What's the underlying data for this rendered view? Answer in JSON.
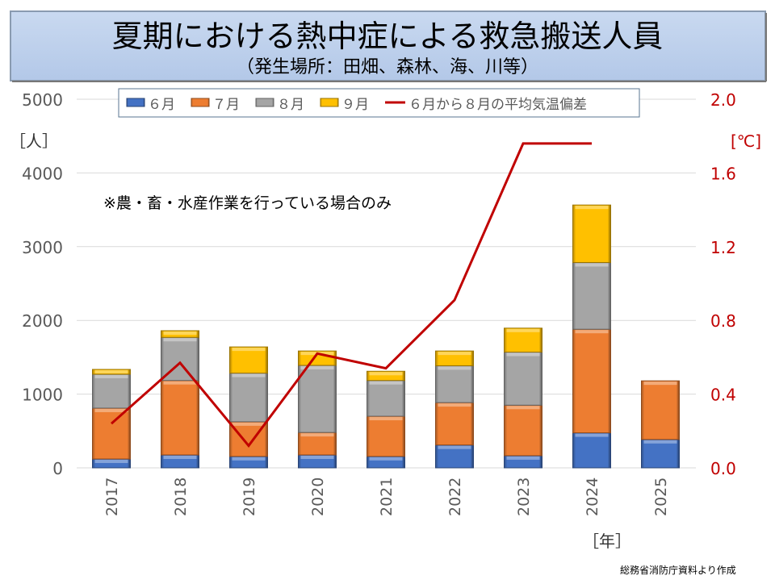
{
  "title": "夏期における熱中症による救急搬送人員",
  "subtitle": "（発生場所：田畑、森林、海、川等）",
  "annotation": "※農・畜・水産作業を行っている場合のみ",
  "source": "総務省消防庁資料より作成",
  "chart_data": {
    "type": "bar",
    "stacked": true,
    "categories": [
      "2017",
      "2018",
      "2019",
      "2020",
      "2021",
      "2022",
      "2023",
      "2024",
      "2025"
    ],
    "xlabel": "［年］",
    "ylabel": "［人］",
    "ylabel_right": "[℃]",
    "ylim": [
      0,
      5000
    ],
    "yticks": [
      "0",
      "1000",
      "2000",
      "3000",
      "4000",
      "5000"
    ],
    "ylim_right": [
      0,
      2.0
    ],
    "yticks_right": [
      "0.0",
      "0.4",
      "0.8",
      "1.2",
      "1.6",
      "2.0"
    ],
    "grid": true,
    "legend_placement": "top",
    "series": [
      {
        "name": "６月",
        "color": "#4472c4",
        "values": [
          120,
          175,
          155,
          175,
          155,
          310,
          165,
          475,
          385
        ]
      },
      {
        "name": "７月",
        "color": "#ed7d31",
        "values": [
          690,
          1010,
          470,
          305,
          545,
          575,
          685,
          1405,
          795
        ]
      },
      {
        "name": "８月",
        "color": "#a5a5a5",
        "values": [
          460,
          585,
          660,
          910,
          485,
          500,
          720,
          905,
          null
        ]
      },
      {
        "name": "９月",
        "color": "#ffc000",
        "values": [
          65,
          90,
          355,
          195,
          125,
          200,
          325,
          780,
          null
        ]
      }
    ],
    "line_series": {
      "name": "６月から８月の平均気温偏差",
      "color": "#c00000",
      "axis": "right",
      "values": [
        0.24,
        0.57,
        0.12,
        0.62,
        0.54,
        0.91,
        1.76,
        1.76,
        null
      ]
    }
  }
}
